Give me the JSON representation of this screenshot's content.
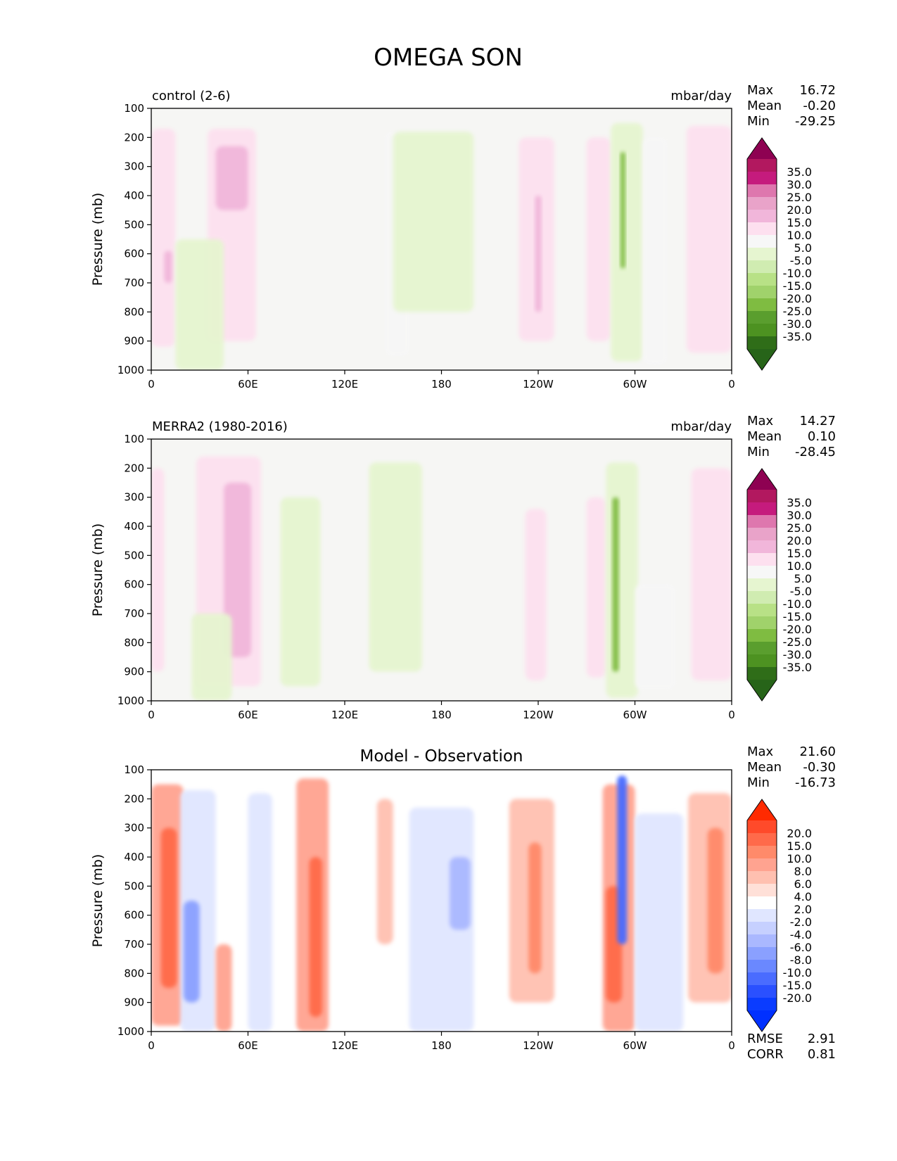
{
  "title": "OMEGA SON",
  "ylabel": "Pressure (mb)",
  "x_ticks": [
    "0",
    "60E",
    "120E",
    "180",
    "120W",
    "60W",
    "0"
  ],
  "y_ticks": [
    "100",
    "200",
    "300",
    "400",
    "500",
    "600",
    "700",
    "800",
    "900",
    "1000"
  ],
  "stat_labels": {
    "max": "Max",
    "mean": "Mean",
    "min": "Min",
    "rmse": "RMSE",
    "corr": "CORR"
  },
  "panels": [
    {
      "left_title": "control (2-6)",
      "units": "mbar/day",
      "stats": {
        "max": "16.72",
        "mean": "-0.20",
        "min": "-29.25"
      },
      "colorbar_labels": [
        "35.0",
        "30.0",
        "25.0",
        "20.0",
        "15.0",
        "10.0",
        "5.0",
        "-5.0",
        "-10.0",
        "-15.0",
        "-20.0",
        "-25.0",
        "-30.0",
        "-35.0"
      ],
      "colorbar_colors": [
        "#8e0152",
        "#b2185f",
        "#c51b7d",
        "#de77ae",
        "#e9a3c9",
        "#f1b6da",
        "#fde0ef",
        "#f7f7f7",
        "#e6f5d0",
        "#d0ecb1",
        "#b8e186",
        "#a0d26b",
        "#7fbc41",
        "#5a9e2e",
        "#4d9221",
        "#2f6d18",
        "#276419"
      ]
    },
    {
      "left_title": "MERRA2 (1980-2016)",
      "units": "mbar/day",
      "stats": {
        "max": "14.27",
        "mean": "0.10",
        "min": "-28.45"
      },
      "colorbar_labels": [
        "35.0",
        "30.0",
        "25.0",
        "20.0",
        "15.0",
        "10.0",
        "5.0",
        "-5.0",
        "-10.0",
        "-15.0",
        "-20.0",
        "-25.0",
        "-30.0",
        "-35.0"
      ],
      "colorbar_colors": [
        "#8e0152",
        "#b2185f",
        "#c51b7d",
        "#de77ae",
        "#e9a3c9",
        "#f1b6da",
        "#fde0ef",
        "#f7f7f7",
        "#e6f5d0",
        "#d0ecb1",
        "#b8e186",
        "#a0d26b",
        "#7fbc41",
        "#5a9e2e",
        "#4d9221",
        "#2f6d18",
        "#276419"
      ]
    },
    {
      "center_title": "Model - Observation",
      "stats": {
        "max": "21.60",
        "mean": "-0.30",
        "min": "-16.73"
      },
      "rmse": "2.91",
      "corr": "0.81",
      "colorbar_labels": [
        "20.0",
        "15.0",
        "10.0",
        "8.0",
        "6.0",
        "4.0",
        "2.0",
        "-2.0",
        "-4.0",
        "-6.0",
        "-8.0",
        "-10.0",
        "-15.0",
        "-20.0"
      ],
      "colorbar_colors": [
        "#ff2a00",
        "#ff4a2a",
        "#ff6a4a",
        "#ff8a6a",
        "#ffa390",
        "#ffc0b0",
        "#ffe0d8",
        "#ffffff",
        "#e0e6ff",
        "#c6d0ff",
        "#aab8ff",
        "#8aa0ff",
        "#6a88ff",
        "#4a6cff",
        "#2a50ff",
        "#0a3cff",
        "#0030ff"
      ]
    }
  ],
  "chart_data": [
    {
      "type": "heatmap",
      "title": "control (2-6)",
      "units": "mbar/day",
      "xlabel": "",
      "ylabel": "Pressure (mb)",
      "xlim": [
        0,
        360
      ],
      "ylim": [
        1000,
        100
      ],
      "x_tick_values": [
        0,
        60,
        120,
        180,
        240,
        300,
        360
      ],
      "y_tick_values": [
        100,
        200,
        300,
        400,
        500,
        600,
        700,
        800,
        900,
        1000
      ],
      "regions": [
        {
          "lon": [
            0,
            15
          ],
          "p": [
            170,
            920
          ],
          "value": 7
        },
        {
          "lon": [
            8,
            13
          ],
          "p": [
            590,
            700
          ],
          "value": 14
        },
        {
          "lon": [
            35,
            65
          ],
          "p": [
            170,
            900
          ],
          "value": 6
        },
        {
          "lon": [
            40,
            60
          ],
          "p": [
            230,
            450
          ],
          "value": 11
        },
        {
          "lon": [
            15,
            45
          ],
          "p": [
            550,
            1000
          ],
          "value": -6
        },
        {
          "lon": [
            145,
            160
          ],
          "p": [
            180,
            950
          ],
          "value": -5
        },
        {
          "lon": [
            150,
            200
          ],
          "p": [
            180,
            800
          ],
          "value": -6
        },
        {
          "lon": [
            228,
            250
          ],
          "p": [
            200,
            900
          ],
          "value": 6
        },
        {
          "lon": [
            238,
            242
          ],
          "p": [
            400,
            800
          ],
          "value": 12
        },
        {
          "lon": [
            270,
            285
          ],
          "p": [
            200,
            900
          ],
          "value": 5
        },
        {
          "lon": [
            285,
            305
          ],
          "p": [
            150,
            970
          ],
          "value": -10
        },
        {
          "lon": [
            291,
            294
          ],
          "p": [
            250,
            650
          ],
          "value": -28
        },
        {
          "lon": [
            305,
            320
          ],
          "p": [
            200,
            980
          ],
          "value": -5
        },
        {
          "lon": [
            332,
            360
          ],
          "p": [
            160,
            940
          ],
          "value": 7
        }
      ]
    },
    {
      "type": "heatmap",
      "title": "MERRA2 (1980-2016)",
      "units": "mbar/day",
      "xlabel": "",
      "ylabel": "Pressure (mb)",
      "xlim": [
        0,
        360
      ],
      "ylim": [
        1000,
        100
      ],
      "x_tick_values": [
        0,
        60,
        120,
        180,
        240,
        300,
        360
      ],
      "y_tick_values": [
        100,
        200,
        300,
        400,
        500,
        600,
        700,
        800,
        900,
        1000
      ],
      "regions": [
        {
          "lon": [
            0,
            8
          ],
          "p": [
            200,
            900
          ],
          "value": 6
        },
        {
          "lon": [
            28,
            68
          ],
          "p": [
            160,
            950
          ],
          "value": 6
        },
        {
          "lon": [
            45,
            62
          ],
          "p": [
            250,
            850
          ],
          "value": 12
        },
        {
          "lon": [
            25,
            50
          ],
          "p": [
            700,
            1000
          ],
          "value": -6
        },
        {
          "lon": [
            80,
            105
          ],
          "p": [
            300,
            950
          ],
          "value": -6
        },
        {
          "lon": [
            135,
            168
          ],
          "p": [
            180,
            900
          ],
          "value": -6
        },
        {
          "lon": [
            232,
            245
          ],
          "p": [
            340,
            930
          ],
          "value": 6
        },
        {
          "lon": [
            270,
            282
          ],
          "p": [
            300,
            920
          ],
          "value": 5
        },
        {
          "lon": [
            282,
            302
          ],
          "p": [
            180,
            990
          ],
          "value": -10
        },
        {
          "lon": [
            286,
            290
          ],
          "p": [
            300,
            900
          ],
          "value": -26
        },
        {
          "lon": [
            300,
            325
          ],
          "p": [
            600,
            960
          ],
          "value": -5
        },
        {
          "lon": [
            335,
            360
          ],
          "p": [
            200,
            930
          ],
          "value": 6
        }
      ]
    },
    {
      "type": "heatmap",
      "title": "Model - Observation",
      "xlabel": "",
      "ylabel": "Pressure (mb)",
      "xlim": [
        0,
        360
      ],
      "ylim": [
        1000,
        100
      ],
      "x_tick_values": [
        0,
        60,
        120,
        180,
        240,
        300,
        360
      ],
      "y_tick_values": [
        100,
        200,
        300,
        400,
        500,
        600,
        700,
        800,
        900,
        1000
      ],
      "regions": [
        {
          "lon": [
            0,
            20
          ],
          "p": [
            150,
            980
          ],
          "value": 6
        },
        {
          "lon": [
            6,
            16
          ],
          "p": [
            300,
            850
          ],
          "value": 13
        },
        {
          "lon": [
            18,
            40
          ],
          "p": [
            170,
            1000
          ],
          "value": -4
        },
        {
          "lon": [
            20,
            30
          ],
          "p": [
            550,
            900
          ],
          "value": -9
        },
        {
          "lon": [
            40,
            50
          ],
          "p": [
            700,
            1000
          ],
          "value": 7
        },
        {
          "lon": [
            60,
            75
          ],
          "p": [
            180,
            1000
          ],
          "value": -4
        },
        {
          "lon": [
            90,
            110
          ],
          "p": [
            130,
            1000
          ],
          "value": 6
        },
        {
          "lon": [
            98,
            106
          ],
          "p": [
            400,
            950
          ],
          "value": 14
        },
        {
          "lon": [
            140,
            150
          ],
          "p": [
            200,
            700
          ],
          "value": 4
        },
        {
          "lon": [
            160,
            200
          ],
          "p": [
            230,
            1000
          ],
          "value": -4
        },
        {
          "lon": [
            185,
            198
          ],
          "p": [
            400,
            650
          ],
          "value": -7
        },
        {
          "lon": [
            222,
            250
          ],
          "p": [
            200,
            900
          ],
          "value": 5
        },
        {
          "lon": [
            234,
            242
          ],
          "p": [
            350,
            800
          ],
          "value": 9
        },
        {
          "lon": [
            280,
            300
          ],
          "p": [
            150,
            1000
          ],
          "value": 6
        },
        {
          "lon": [
            282,
            292
          ],
          "p": [
            500,
            900
          ],
          "value": 14
        },
        {
          "lon": [
            289,
            295
          ],
          "p": [
            120,
            700
          ],
          "value": -16
        },
        {
          "lon": [
            300,
            330
          ],
          "p": [
            250,
            1000
          ],
          "value": -4
        },
        {
          "lon": [
            333,
            360
          ],
          "p": [
            180,
            900
          ],
          "value": 4
        },
        {
          "lon": [
            345,
            355
          ],
          "p": [
            300,
            800
          ],
          "value": 8
        }
      ]
    }
  ]
}
